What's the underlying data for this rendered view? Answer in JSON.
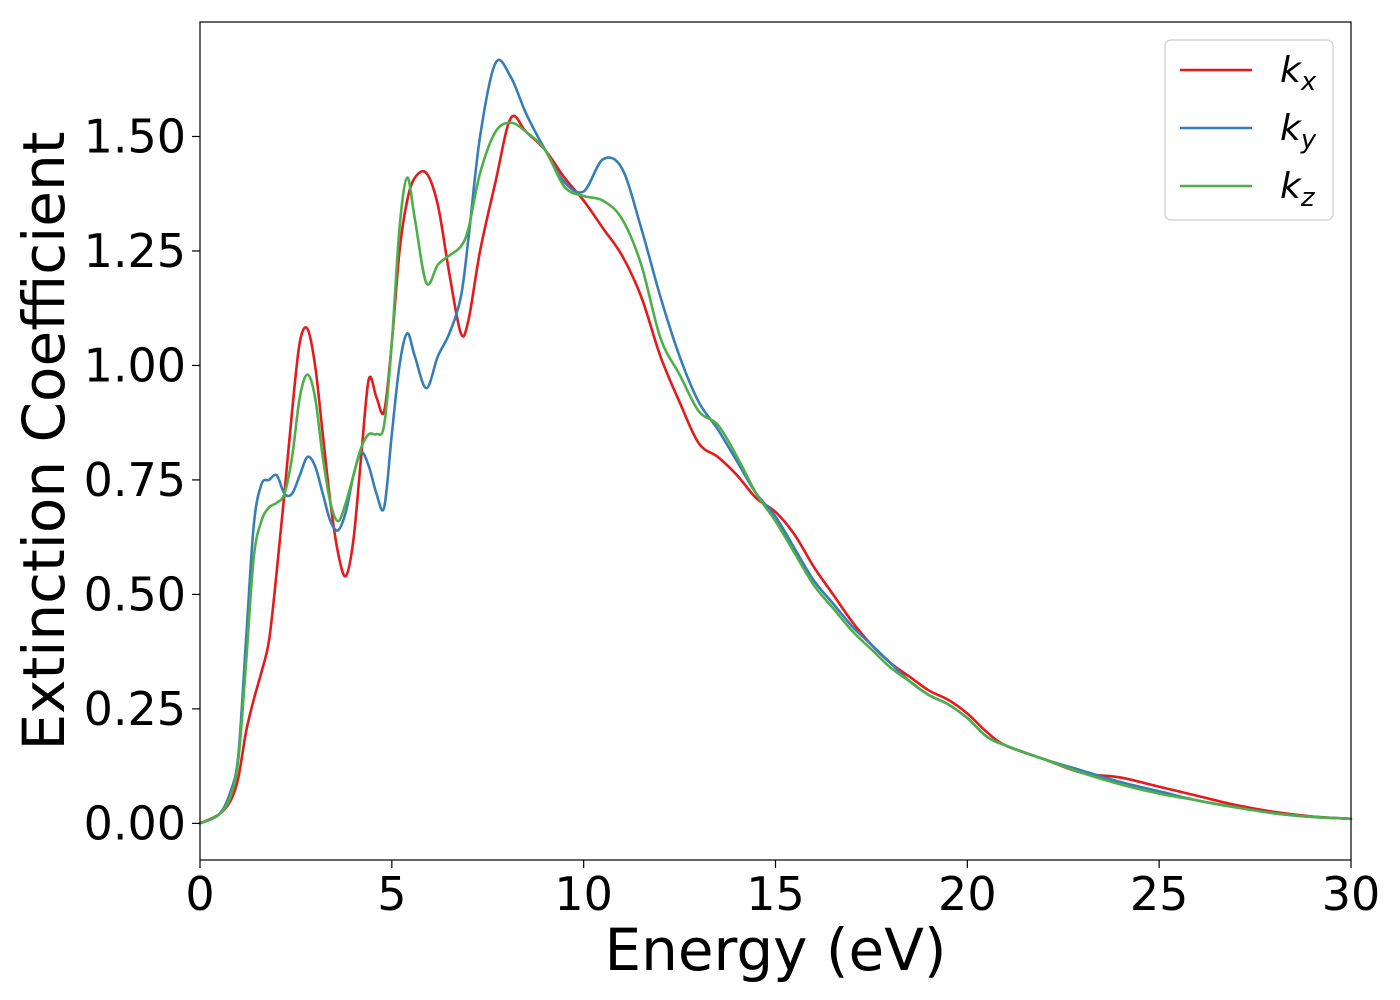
{
  "chart_data": {
    "type": "line",
    "xlabel": "Energy (eV)",
    "ylabel": "Extinction Coefficient",
    "xlim": [
      0,
      30
    ],
    "ylim": [
      -0.08,
      1.75
    ],
    "xticks": [
      0,
      5,
      10,
      15,
      20,
      25,
      30
    ],
    "xtick_labels": [
      "0",
      "5",
      "10",
      "15",
      "20",
      "25",
      "30"
    ],
    "yticks": [
      0.0,
      0.25,
      0.5,
      0.75,
      1.0,
      1.25,
      1.5
    ],
    "ytick_labels": [
      "0.00",
      "0.25",
      "0.50",
      "0.75",
      "1.00",
      "1.25",
      "1.50"
    ],
    "grid": false,
    "legend_position": "top-right",
    "series": [
      {
        "name": "k",
        "subscript": "x",
        "color": "#e41a1c",
        "x": [
          0,
          0.5,
          0.8,
          1.0,
          1.2,
          1.4,
          1.6,
          1.8,
          2.0,
          2.2,
          2.4,
          2.6,
          2.8,
          3.0,
          3.2,
          3.4,
          3.6,
          3.8,
          4.0,
          4.2,
          4.4,
          4.6,
          4.8,
          5.0,
          5.2,
          5.4,
          5.6,
          5.9,
          6.2,
          6.5,
          6.8,
          7.0,
          7.3,
          7.7,
          8.1,
          8.5,
          9.0,
          9.5,
          10.0,
          10.5,
          11.0,
          11.5,
          12.0,
          12.5,
          13.0,
          13.5,
          14.0,
          14.5,
          15.0,
          15.5,
          16.0,
          16.5,
          17.0,
          17.5,
          18.0,
          18.5,
          19.0,
          19.5,
          20.0,
          20.5,
          21.0,
          22.0,
          23.0,
          24.0,
          25.0,
          26.0,
          27.0,
          28.0,
          29.0,
          30.0
        ],
        "y": [
          0.0,
          0.02,
          0.05,
          0.1,
          0.2,
          0.27,
          0.33,
          0.4,
          0.55,
          0.72,
          0.9,
          1.05,
          1.08,
          1.0,
          0.85,
          0.7,
          0.59,
          0.54,
          0.62,
          0.8,
          0.97,
          0.93,
          0.9,
          1.05,
          1.25,
          1.36,
          1.41,
          1.42,
          1.35,
          1.2,
          1.07,
          1.1,
          1.25,
          1.4,
          1.54,
          1.51,
          1.47,
          1.41,
          1.36,
          1.3,
          1.24,
          1.15,
          1.02,
          0.92,
          0.83,
          0.8,
          0.76,
          0.71,
          0.68,
          0.63,
          0.56,
          0.5,
          0.44,
          0.39,
          0.35,
          0.32,
          0.29,
          0.27,
          0.24,
          0.2,
          0.17,
          0.14,
          0.11,
          0.1,
          0.08,
          0.06,
          0.04,
          0.025,
          0.015,
          0.01
        ]
      },
      {
        "name": "k",
        "subscript": "y",
        "color": "#377eb8",
        "x": [
          0,
          0.5,
          0.8,
          1.0,
          1.2,
          1.4,
          1.6,
          1.8,
          2.0,
          2.2,
          2.4,
          2.6,
          2.8,
          3.0,
          3.2,
          3.4,
          3.6,
          3.8,
          4.0,
          4.2,
          4.4,
          4.6,
          4.8,
          5.0,
          5.2,
          5.4,
          5.6,
          5.9,
          6.2,
          6.5,
          6.8,
          7.0,
          7.3,
          7.7,
          8.1,
          8.5,
          9.0,
          9.5,
          10.0,
          10.5,
          11.0,
          11.5,
          12.0,
          12.5,
          13.0,
          13.5,
          14.0,
          14.5,
          15.0,
          15.5,
          16.0,
          16.5,
          17.0,
          17.5,
          18.0,
          18.5,
          19.0,
          19.5,
          20.0,
          20.5,
          21.0,
          22.0,
          23.0,
          24.0,
          25.0,
          26.0,
          27.0,
          28.0,
          29.0,
          30.0
        ],
        "y": [
          0.0,
          0.02,
          0.07,
          0.15,
          0.4,
          0.65,
          0.74,
          0.75,
          0.76,
          0.72,
          0.72,
          0.76,
          0.8,
          0.78,
          0.72,
          0.66,
          0.64,
          0.68,
          0.76,
          0.81,
          0.78,
          0.72,
          0.69,
          0.85,
          1.0,
          1.07,
          1.02,
          0.95,
          1.02,
          1.07,
          1.15,
          1.28,
          1.5,
          1.66,
          1.63,
          1.55,
          1.47,
          1.4,
          1.38,
          1.45,
          1.43,
          1.3,
          1.15,
          1.02,
          0.92,
          0.86,
          0.79,
          0.72,
          0.67,
          0.6,
          0.53,
          0.48,
          0.43,
          0.39,
          0.35,
          0.31,
          0.28,
          0.26,
          0.23,
          0.19,
          0.17,
          0.14,
          0.115,
          0.09,
          0.07,
          0.05,
          0.035,
          0.022,
          0.014,
          0.01
        ]
      },
      {
        "name": "k",
        "subscript": "z",
        "color": "#4daf4a",
        "x": [
          0,
          0.5,
          0.8,
          1.0,
          1.2,
          1.4,
          1.6,
          1.8,
          2.0,
          2.2,
          2.4,
          2.6,
          2.8,
          3.0,
          3.2,
          3.4,
          3.6,
          3.8,
          4.0,
          4.2,
          4.4,
          4.6,
          4.8,
          5.0,
          5.2,
          5.4,
          5.6,
          5.9,
          6.2,
          6.5,
          6.8,
          7.0,
          7.3,
          7.7,
          8.1,
          8.5,
          9.0,
          9.5,
          10.0,
          10.5,
          11.0,
          11.5,
          12.0,
          12.5,
          13.0,
          13.5,
          14.0,
          14.5,
          15.0,
          15.5,
          16.0,
          16.5,
          17.0,
          17.5,
          18.0,
          18.5,
          19.0,
          19.5,
          20.0,
          20.5,
          21.0,
          22.0,
          23.0,
          24.0,
          25.0,
          26.0,
          27.0,
          28.0,
          29.0,
          30.0
        ],
        "y": [
          0.0,
          0.02,
          0.06,
          0.14,
          0.35,
          0.58,
          0.66,
          0.69,
          0.7,
          0.72,
          0.8,
          0.93,
          0.98,
          0.93,
          0.8,
          0.7,
          0.66,
          0.7,
          0.76,
          0.82,
          0.85,
          0.85,
          0.87,
          1.05,
          1.3,
          1.41,
          1.32,
          1.18,
          1.22,
          1.24,
          1.26,
          1.3,
          1.42,
          1.51,
          1.53,
          1.51,
          1.47,
          1.39,
          1.37,
          1.36,
          1.32,
          1.22,
          1.06,
          0.98,
          0.9,
          0.87,
          0.8,
          0.72,
          0.66,
          0.59,
          0.52,
          0.47,
          0.42,
          0.38,
          0.34,
          0.31,
          0.28,
          0.26,
          0.23,
          0.19,
          0.17,
          0.14,
          0.11,
          0.085,
          0.065,
          0.05,
          0.035,
          0.022,
          0.014,
          0.01
        ]
      }
    ]
  }
}
